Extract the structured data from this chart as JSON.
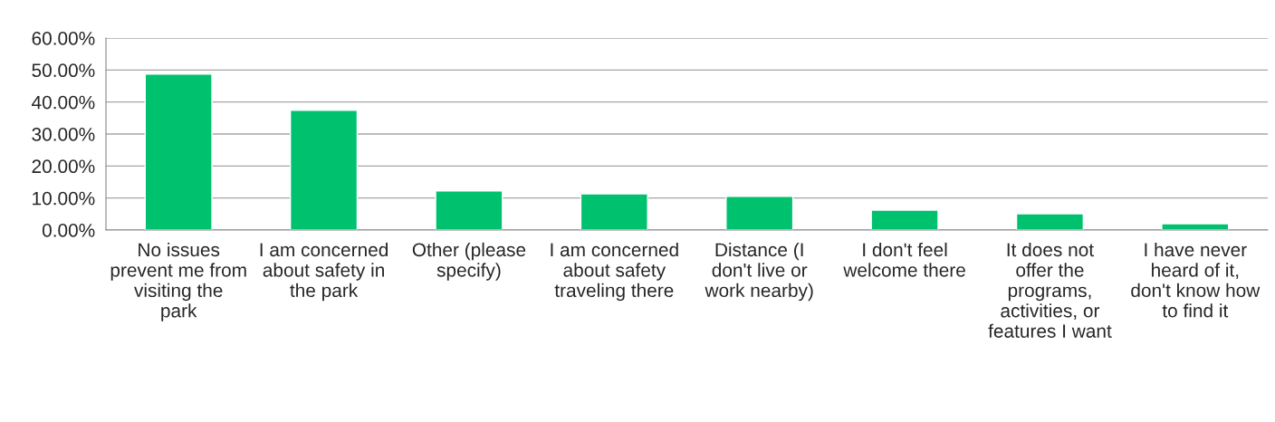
{
  "chart_data": {
    "type": "bar",
    "categories": [
      "No issues prevent me from visiting the park",
      "I am concerned about safety in the park",
      "Other (please specify)",
      "I am concerned about safety traveling there",
      "Distance (I don't live or work nearby)",
      "I don't feel welcome there",
      "It does not offer the programs, activities, or features I want",
      "I have never heard of it, don't know how to find it"
    ],
    "values": [
      48.7,
      37.4,
      12.2,
      11.3,
      10.5,
      6.2,
      5.1,
      2.0
    ],
    "color": "#00c16e",
    "ylim": [
      0,
      60
    ],
    "yticks": [
      {
        "value": 0,
        "label": "0.00%"
      },
      {
        "value": 10,
        "label": "10.00%"
      },
      {
        "value": 20,
        "label": "20.00%"
      },
      {
        "value": 30,
        "label": "30.00%"
      },
      {
        "value": 40,
        "label": "40.00%"
      },
      {
        "value": 50,
        "label": "50.00%"
      },
      {
        "value": 60,
        "label": "60.00%"
      }
    ],
    "grid": "y",
    "legend": false
  }
}
